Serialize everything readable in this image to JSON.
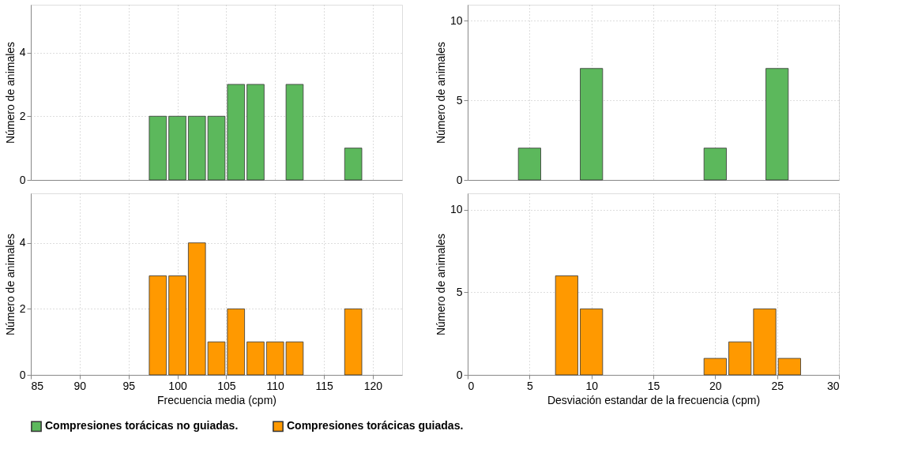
{
  "chart_data": [
    {
      "type": "histogram",
      "ylabel": "Número de animales",
      "bins": [
        97,
        99,
        101,
        103,
        105,
        107,
        109,
        111,
        113,
        115,
        117,
        119
      ],
      "xlim": [
        85,
        123
      ],
      "xticks": [
        85,
        90,
        95,
        100,
        105,
        110,
        115,
        120
      ],
      "ylim": [
        0,
        5.5
      ],
      "yticks": [
        0,
        2,
        4
      ],
      "tick_labels": "y",
      "grid": true,
      "legend": "bottom",
      "series": [
        {
          "name": "Compresiones torácicas no guiadas.",
          "color": "#5cb85c",
          "values": [
            2,
            2,
            2,
            2,
            3,
            3,
            0,
            3,
            0,
            0,
            1
          ]
        }
      ]
    },
    {
      "type": "histogram",
      "ylabel": "Número de animales",
      "bins": [
        4,
        6,
        9,
        11,
        19,
        21,
        24,
        26
      ],
      "xlim": [
        0,
        30
      ],
      "xticks": [
        0,
        5,
        10,
        15,
        20,
        25,
        30
      ],
      "ylim": [
        0,
        11
      ],
      "yticks": [
        0,
        5,
        10
      ],
      "tick_labels": "y",
      "grid": true,
      "legend": "bottom",
      "series": [
        {
          "name": "Compresiones torácicas no guiadas.",
          "color": "#5cb85c",
          "values": [
            2,
            0,
            7,
            0,
            2,
            0,
            7
          ]
        }
      ]
    },
    {
      "type": "histogram",
      "xlabel": "Frecuencia media (cpm)",
      "ylabel": "Número de animales",
      "bins": [
        97,
        99,
        101,
        103,
        105,
        107,
        109,
        111,
        113,
        115,
        117,
        119
      ],
      "xlim": [
        85,
        123
      ],
      "xticks": [
        85,
        90,
        95,
        100,
        105,
        110,
        115,
        120
      ],
      "ylim": [
        0,
        5.5
      ],
      "yticks": [
        0,
        2,
        4
      ],
      "grid": true,
      "legend": "bottom",
      "series": [
        {
          "name": "Compresiones torácicas guiadas.",
          "color": "#ff9900",
          "values": [
            3,
            3,
            4,
            1,
            2,
            1,
            1,
            1,
            0,
            0,
            2
          ]
        }
      ]
    },
    {
      "type": "histogram",
      "xlabel": "Desviación estandar de la frecuencia (cpm)",
      "ylabel": "Número de animales",
      "bins": [
        7,
        9,
        11,
        19,
        21,
        23,
        25,
        27
      ],
      "xlim": [
        0,
        30
      ],
      "xticks": [
        0,
        5,
        10,
        15,
        20,
        25,
        30
      ],
      "ylim": [
        0,
        11
      ],
      "yticks": [
        0,
        5,
        10
      ],
      "grid": true,
      "legend": "bottom",
      "series": [
        {
          "name": "Compresiones torácicas guiadas.",
          "color": "#ff9900",
          "values": [
            6,
            4,
            0,
            1,
            2,
            4,
            1
          ]
        }
      ]
    }
  ]
}
